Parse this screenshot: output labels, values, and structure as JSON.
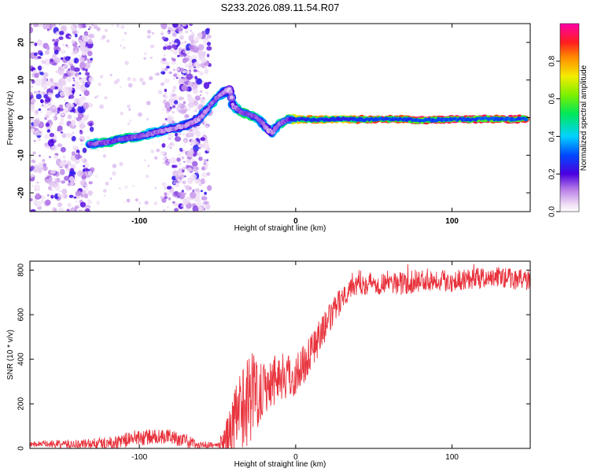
{
  "title": "S233.2026.089.11.54.R07",
  "chart_data": [
    {
      "type": "heatmap",
      "xlabel": "Height of straight line (km)",
      "ylabel": "Frequency (Hz)",
      "xlim": [
        -170,
        150
      ],
      "ylim": [
        -25,
        25
      ],
      "x_ticks": [
        -100,
        0,
        100
      ],
      "y_ticks": [
        -20,
        -10,
        0,
        10,
        20
      ],
      "colorbar": {
        "label": "Normalized spectral amplitude",
        "range": [
          0,
          1
        ],
        "ticks": [
          0.0,
          0.2,
          0.4,
          0.6,
          0.8
        ]
      },
      "ridge": {
        "x": [
          -130,
          -120,
          -110,
          -100,
          -90,
          -80,
          -70,
          -62,
          -55,
          -50,
          -45,
          -42,
          -40,
          -35,
          -30,
          -25,
          -20,
          -17,
          -15,
          -10,
          -5,
          0,
          10,
          20,
          30,
          40,
          50,
          60,
          70,
          80,
          90,
          100,
          110,
          120,
          130,
          140,
          148
        ],
        "freq": [
          -7,
          -6.5,
          -5.5,
          -5,
          -4,
          -3,
          -2,
          -0.5,
          3,
          5.5,
          7,
          7.5,
          3,
          1.5,
          0.8,
          0,
          -2,
          -3.5,
          -4,
          -1.5,
          -0.5,
          -0.5,
          -0.5,
          -0.5,
          -0.3,
          -0.5,
          -0.5,
          -0.4,
          -0.5,
          -0.8,
          -0.6,
          -0.4,
          -0.5,
          -0.3,
          -0.4,
          -0.4,
          -0.3
        ],
        "amplitude": [
          0.45,
          0.5,
          0.5,
          0.45,
          0.4,
          0.35,
          0.3,
          0.3,
          0.4,
          0.45,
          0.3,
          0.2,
          0.35,
          0.5,
          0.55,
          0.45,
          0.35,
          0.3,
          0.35,
          0.45,
          0.55,
          0.75,
          0.85,
          0.8,
          0.75,
          0.85,
          0.9,
          0.9,
          0.85,
          0.95,
          0.9,
          0.95,
          0.9,
          0.95,
          0.9,
          0.95,
          0.9
        ]
      },
      "noise_bands_x": [
        [
          -170,
          -130
        ],
        [
          -85,
          -55
        ]
      ]
    },
    {
      "type": "line",
      "xlabel": "Height of straight line (km)",
      "ylabel": "SNR (10 * v/v)",
      "xlim": [
        -170,
        150
      ],
      "ylim": [
        0,
        840
      ],
      "x_ticks": [
        -100,
        0,
        100
      ],
      "y_ticks": [
        0,
        200,
        400,
        600,
        800
      ],
      "color": "#e8323c",
      "series_trend": {
        "x": [
          -170,
          -140,
          -115,
          -105,
          -95,
          -80,
          -70,
          -60,
          -50,
          -45,
          -40,
          -35,
          -30,
          -25,
          -20,
          -15,
          -10,
          -5,
          0,
          5,
          10,
          15,
          20,
          25,
          30,
          35,
          40,
          50,
          60,
          70,
          80,
          90,
          100,
          110,
          120,
          130,
          140,
          150
        ],
        "y": [
          20,
          18,
          25,
          45,
          50,
          55,
          30,
          15,
          15,
          30,
          90,
          180,
          230,
          260,
          280,
          310,
          330,
          320,
          330,
          380,
          440,
          500,
          560,
          620,
          680,
          730,
          745,
          740,
          745,
          740,
          755,
          760,
          750,
          765,
          760,
          770,
          760,
          755
        ]
      },
      "series_noise": {
        "x": [
          -170,
          -100,
          -70,
          -50,
          -40,
          -30,
          -20,
          0,
          30,
          150
        ],
        "amplitude": [
          12,
          35,
          30,
          8,
          150,
          220,
          130,
          100,
          55,
          45
        ]
      }
    }
  ]
}
